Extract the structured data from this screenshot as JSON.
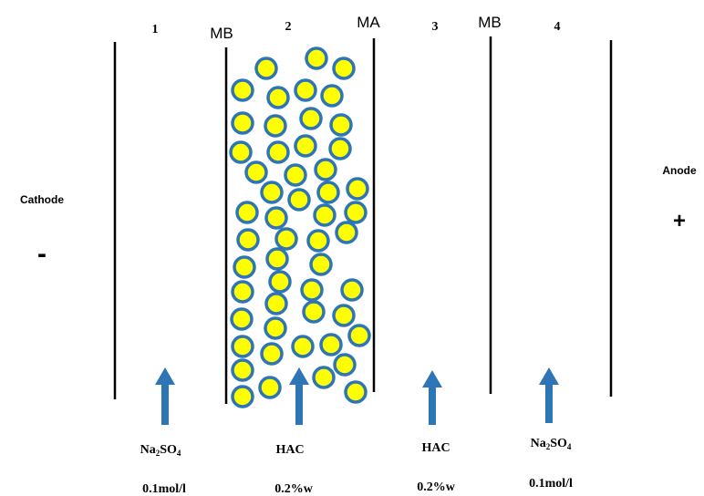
{
  "compartments": [
    "1",
    "2",
    "3",
    "4"
  ],
  "membranes": {
    "left": "MB",
    "middle": "MA",
    "right": "MB"
  },
  "electrodes": {
    "cathode": {
      "label": "Cathode",
      "sign": "-"
    },
    "anode": {
      "label": "Anode",
      "sign": "+"
    }
  },
  "solutions": [
    {
      "name": "Na",
      "sub1": "2",
      "mid": "SO",
      "sub2": "4",
      "conc": "0.1mol/l"
    },
    {
      "name": "HAC",
      "conc": "0.2%w"
    },
    {
      "name": "HAC",
      "conc": "0.2%w"
    },
    {
      "name": "Na",
      "sub1": "2",
      "mid": "SO",
      "sub2": "4",
      "conc": "0.1mol/l"
    }
  ],
  "colors": {
    "line": "#000000",
    "arrow": "#2e75b6",
    "bead_fill": "#ffff00",
    "bead_stroke": "#2e75b6"
  },
  "icons": {
    "flow": "up-arrow-icon",
    "bead": "resin-bead-icon"
  }
}
